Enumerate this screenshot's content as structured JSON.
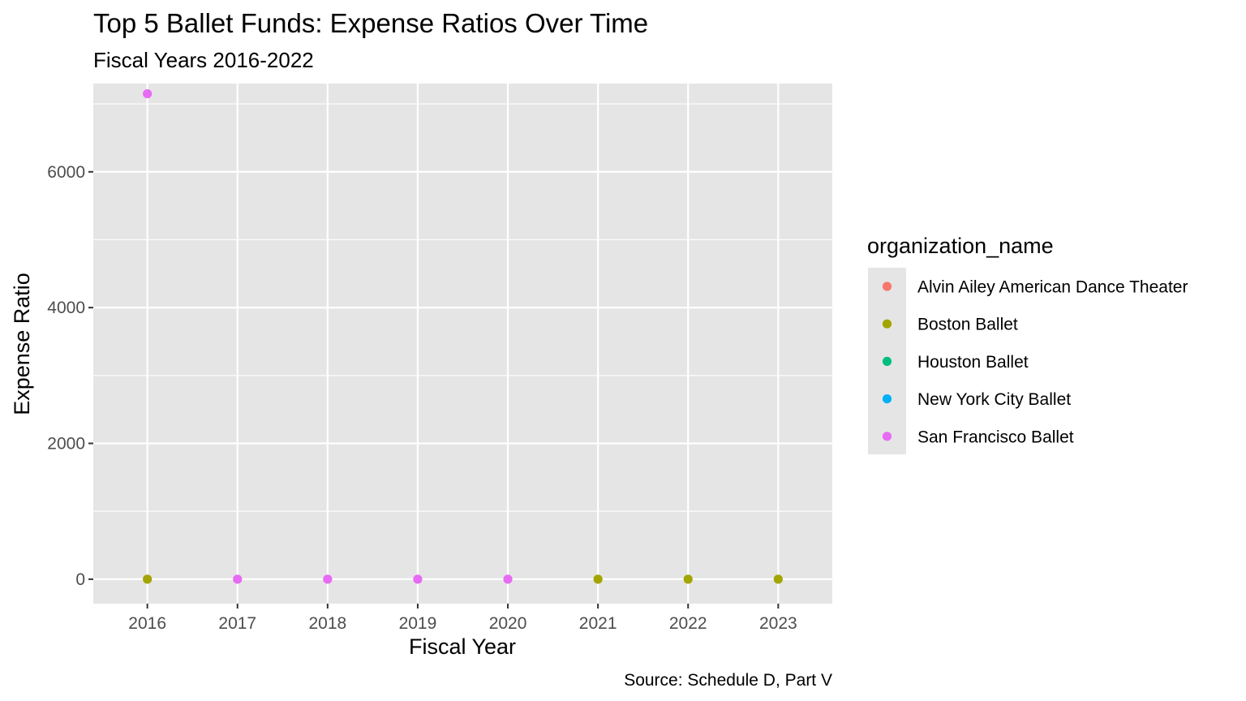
{
  "chart_data": {
    "type": "scatter",
    "title": "Top 5 Ballet Funds: Expense Ratios Over Time",
    "subtitle": "Fiscal Years 2016-2022",
    "xlabel": "Fiscal Year",
    "ylabel": "Expense Ratio",
    "caption": "Source: Schedule D, Part V",
    "xlim": [
      2015.4,
      2023.6
    ],
    "ylim": [
      -360,
      7300
    ],
    "x_ticks": [
      2016,
      2017,
      2018,
      2019,
      2020,
      2021,
      2022,
      2023
    ],
    "y_ticks": [
      0,
      2000,
      4000,
      6000
    ],
    "y_minor_ticks": [
      1000,
      3000,
      5000,
      7000
    ],
    "grid": true,
    "panel_background": "#e5e5e5",
    "legend": {
      "title": "organization_name",
      "position": "right"
    },
    "series": [
      {
        "name": "Alvin Ailey American Dance Theater",
        "color": "#F8766D",
        "points": []
      },
      {
        "name": "Boston Ballet",
        "color": "#A3A500",
        "points": [
          [
            2016,
            0
          ],
          [
            2021,
            0
          ],
          [
            2022,
            0
          ],
          [
            2023,
            0
          ]
        ]
      },
      {
        "name": "Houston Ballet",
        "color": "#00BF7D",
        "points": []
      },
      {
        "name": "New York City Ballet",
        "color": "#00B0F6",
        "points": []
      },
      {
        "name": "San Francisco Ballet",
        "color": "#E76BF3",
        "points": [
          [
            2016,
            7150
          ],
          [
            2017,
            0
          ],
          [
            2018,
            0
          ],
          [
            2019,
            0
          ],
          [
            2020,
            0
          ]
        ]
      }
    ]
  }
}
